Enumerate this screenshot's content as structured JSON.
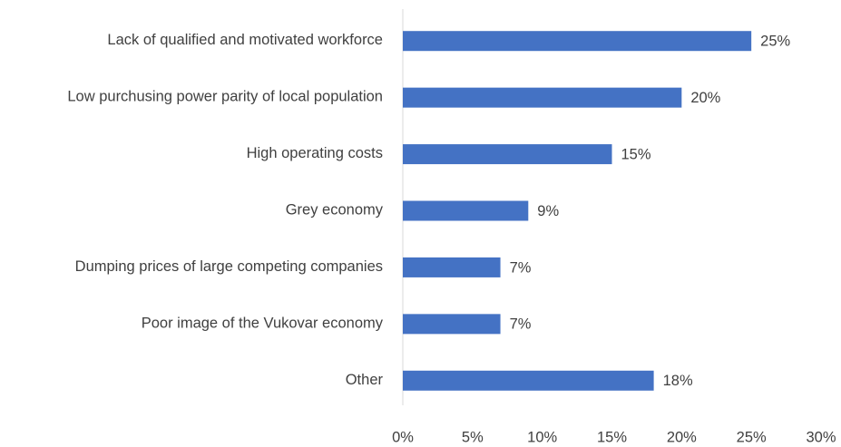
{
  "chart_data": {
    "type": "bar",
    "orientation": "horizontal",
    "categories": [
      "Lack of qualified and motivated workforce",
      "Low purchusing power parity of local population",
      "High operating costs",
      "Grey economy",
      "Dumping prices of large competing companies",
      "Poor image of the Vukovar economy",
      "Other"
    ],
    "values": [
      25,
      20,
      15,
      9,
      7,
      7,
      18
    ],
    "value_labels": [
      "25%",
      "20%",
      "15%",
      "9%",
      "7%",
      "7%",
      "18%"
    ],
    "color": "#4472c4",
    "xlim": [
      0,
      30
    ],
    "xticks": [
      {
        "value": 0,
        "label": "0%"
      },
      {
        "value": 5,
        "label": "5%"
      },
      {
        "value": 10,
        "label": "10%"
      },
      {
        "value": 15,
        "label": "15%"
      },
      {
        "value": 20,
        "label": "20%"
      },
      {
        "value": 25,
        "label": "25%"
      },
      {
        "value": 30,
        "label": "30%"
      }
    ],
    "grid": false
  }
}
